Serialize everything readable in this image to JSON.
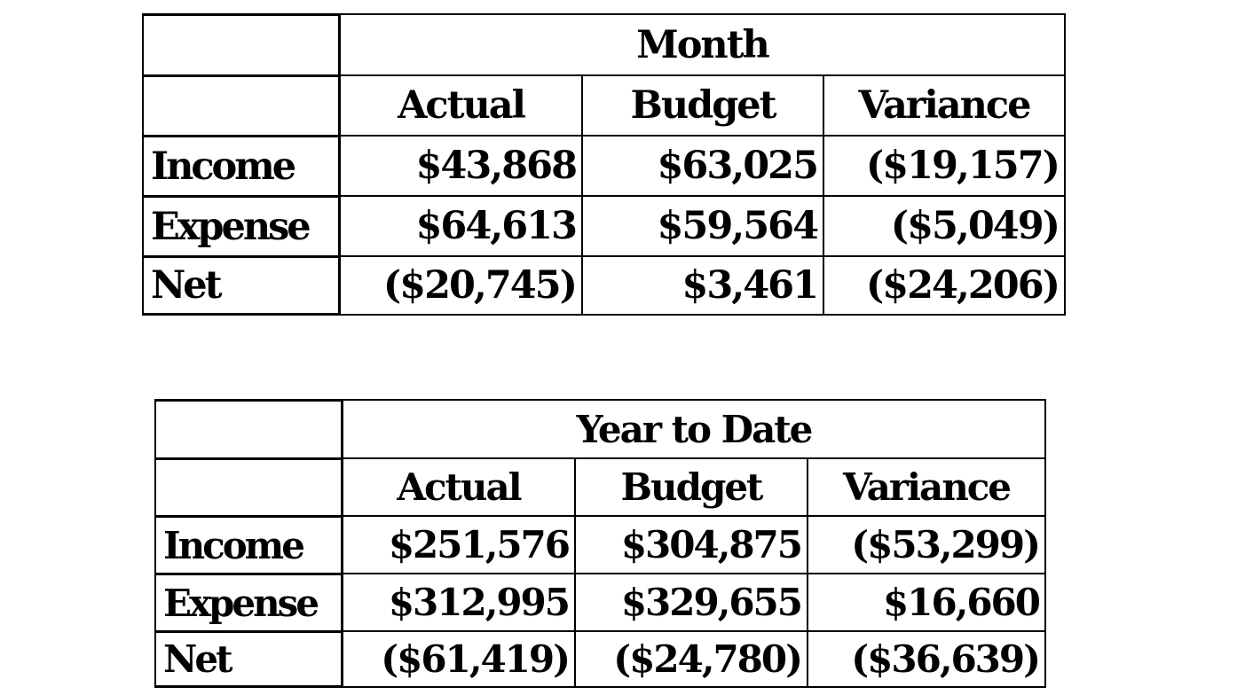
{
  "month": {
    "period": "Month",
    "columns": [
      "Actual",
      "Budget",
      "Variance"
    ],
    "rows": [
      {
        "label": "Income",
        "values": [
          "$43,868",
          "$63,025",
          "($19,157)"
        ]
      },
      {
        "label": "Expense",
        "values": [
          "$64,613",
          "$59,564",
          "($5,049)"
        ]
      },
      {
        "label": "Net",
        "values": [
          "($20,745)",
          "$3,461",
          "($24,206)"
        ]
      }
    ]
  },
  "ytd": {
    "period": "Year to Date",
    "columns": [
      "Actual",
      "Budget",
      "Variance"
    ],
    "rows": [
      {
        "label": "Income",
        "values": [
          "$251,576",
          "$304,875",
          "($53,299)"
        ]
      },
      {
        "label": "Expense",
        "values": [
          "$312,995",
          "$329,655",
          "$16,660"
        ]
      },
      {
        "label": "Net",
        "values": [
          "($61,419)",
          "($24,780)",
          "($36,639)"
        ]
      }
    ]
  }
}
